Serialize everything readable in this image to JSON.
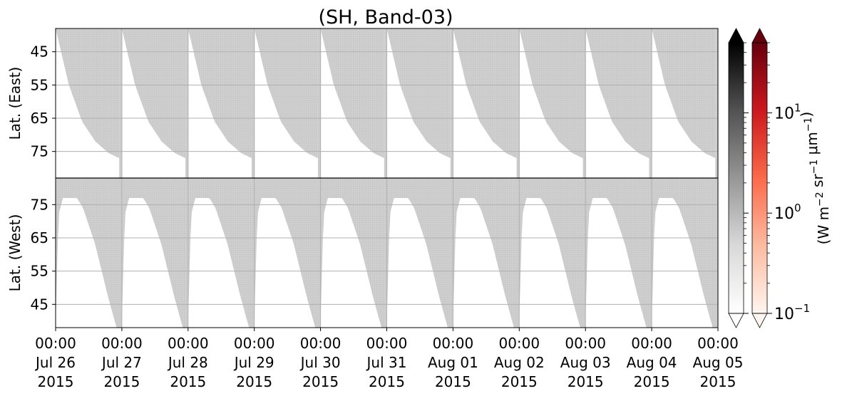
{
  "chart_data": {
    "type": "heatmap",
    "title": "(SH, Band-03)",
    "panels": [
      {
        "name": "east",
        "ylabel": "Lat. (East)",
        "yticks": [
          "45",
          "55",
          "65",
          "75"
        ],
        "ylim": [
          38,
          83
        ],
        "lat_direction": "increasing-down"
      },
      {
        "name": "west",
        "ylabel": "Lat. (West)",
        "yticks": [
          "75",
          "65",
          "55",
          "45"
        ],
        "ylim": [
          83,
          38
        ],
        "lat_direction": "increasing-up"
      }
    ],
    "xlim": [
      "2015-07-26 00:00",
      "2015-08-05 00:00"
    ],
    "xticks": [
      {
        "time": "00:00",
        "date": "Jul 26",
        "year": "2015"
      },
      {
        "time": "00:00",
        "date": "Jul 27",
        "year": "2015"
      },
      {
        "time": "00:00",
        "date": "Jul 28",
        "year": "2015"
      },
      {
        "time": "00:00",
        "date": "Jul 29",
        "year": "2015"
      },
      {
        "time": "00:00",
        "date": "Jul 30",
        "year": "2015"
      },
      {
        "time": "00:00",
        "date": "Jul 31",
        "year": "2015"
      },
      {
        "time": "00:00",
        "date": "Aug 01",
        "year": "2015"
      },
      {
        "time": "00:00",
        "date": "Aug 02",
        "year": "2015"
      },
      {
        "time": "00:00",
        "date": "Aug 03",
        "year": "2015"
      },
      {
        "time": "00:00",
        "date": "Aug 04",
        "year": "2015"
      },
      {
        "time": "00:00",
        "date": "Aug 05",
        "year": "2015"
      }
    ],
    "grid": true,
    "east_coverage_edge_lat": [
      {
        "phase": 0.0,
        "lat": 38
      },
      {
        "phase": 0.2,
        "lat": 55
      },
      {
        "phase": 0.4,
        "lat": 66
      },
      {
        "phase": 0.6,
        "lat": 72
      },
      {
        "phase": 0.8,
        "lat": 75.5
      },
      {
        "phase": 0.96,
        "lat": 77
      }
    ],
    "west_coverage_edge_lat": [
      {
        "phase": 0.0,
        "lat": 40
      },
      {
        "phase": 0.05,
        "lat": 72
      },
      {
        "phase": 0.12,
        "lat": 77
      },
      {
        "phase": 0.35,
        "lat": 77
      },
      {
        "phase": 0.45,
        "lat": 74
      },
      {
        "phase": 0.65,
        "lat": 63
      },
      {
        "phase": 0.85,
        "lat": 48
      },
      {
        "phase": 1.0,
        "lat": 38
      }
    ],
    "colorbars": [
      {
        "name": "gray",
        "extend": "both",
        "colors": [
          "#ffffff",
          "#d9d9d9",
          "#969696",
          "#525252",
          "#000000"
        ],
        "scale": "log",
        "range": [
          0.1,
          50
        ]
      },
      {
        "name": "red",
        "extend": "both",
        "colors": [
          "#fff5f0",
          "#fcbba1",
          "#fb6a4a",
          "#cb181d",
          "#67000d"
        ],
        "scale": "log",
        "range": [
          0.1,
          50
        ],
        "ticks": [
          {
            "base": "10",
            "exp": "1",
            "value": 10
          },
          {
            "base": "10",
            "exp": "0",
            "value": 1
          },
          {
            "base": "10",
            "exp": "−1",
            "value": 0.1
          }
        ],
        "label": {
          "parts": [
            {
              "text": "(W m",
              "sup": "−2"
            },
            {
              "text": " sr",
              "sup": "−1"
            },
            {
              "text": " μm",
              "sup": "−1"
            },
            {
              "text": ")",
              "sup": ""
            }
          ]
        }
      }
    ],
    "colors": {
      "coverage": "#cbcbcb",
      "grid": "#b0b0b0",
      "axes": "#000000"
    }
  }
}
